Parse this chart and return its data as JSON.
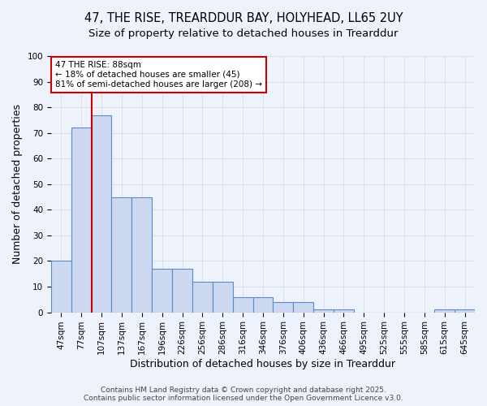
{
  "title": "47, THE RISE, TREARDDUR BAY, HOLYHEAD, LL65 2UY",
  "subtitle": "Size of property relative to detached houses in Trearddur",
  "xlabel": "Distribution of detached houses by size in Trearddur",
  "ylabel": "Number of detached properties",
  "categories": [
    "47sqm",
    "77sqm",
    "107sqm",
    "137sqm",
    "167sqm",
    "196sqm",
    "226sqm",
    "256sqm",
    "286sqm",
    "316sqm",
    "346sqm",
    "376sqm",
    "406sqm",
    "436sqm",
    "466sqm",
    "495sqm",
    "525sqm",
    "555sqm",
    "585sqm",
    "615sqm",
    "645sqm"
  ],
  "bar_values": [
    20,
    72,
    77,
    45,
    45,
    17,
    17,
    12,
    12,
    6,
    6,
    4,
    4,
    1,
    1,
    0,
    0,
    0,
    0,
    1,
    1
  ],
  "bar_color": "#ccd9f0",
  "bar_edge_color": "#5b8bc9",
  "grid_color": "#d0d8e8",
  "background_color": "#eef2fb",
  "vline_x": 1.5,
  "vline_color": "#cc0000",
  "annotation_text": "47 THE RISE: 88sqm\n← 18% of detached houses are smaller (45)\n81% of semi-detached houses are larger (208) →",
  "annotation_box_color": "white",
  "annotation_box_edge": "#cc0000",
  "ylim": [
    0,
    100
  ],
  "yticks": [
    0,
    10,
    20,
    30,
    40,
    50,
    60,
    70,
    80,
    90,
    100
  ],
  "footer_line1": "Contains HM Land Registry data © Crown copyright and database right 2025.",
  "footer_line2": "Contains public sector information licensed under the Open Government Licence v3.0.",
  "title_fontsize": 10.5,
  "subtitle_fontsize": 9.5,
  "axis_label_fontsize": 9,
  "tick_fontsize": 7.5,
  "annotation_fontsize": 7.5,
  "footer_fontsize": 6.5
}
